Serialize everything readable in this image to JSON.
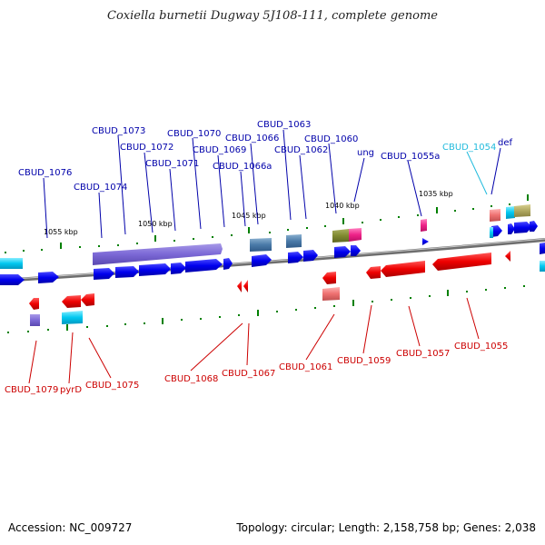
{
  "title": "Coxiella burnetii Dugway 5J108-111, complete genome",
  "footer": {
    "accession": "Accession: NC_009727",
    "topology": "Topology: circular; Length: 2,158,758 bp; Genes: 2,038"
  },
  "colors": {
    "backbone": "#8a8a8a",
    "forward": "#0000ee",
    "reverse": "#ee0000",
    "tick": "#008000",
    "label_forward": "#0000aa",
    "label_reverse": "#cc0000",
    "label_highlight": "#22bbdd"
  },
  "kbp_marks": [
    "1055 kbp",
    "1050 kbp",
    "1045 kbp",
    "1040 kbp",
    "1035 kbp"
  ],
  "gene_labels_top": [
    "CBUD_1076",
    "CBUD_1074",
    "CBUD_1073",
    "CBUD_1072",
    "CBUD_1071",
    "CBUD_1070",
    "CBUD_1069",
    "CBUD_1066",
    "CBUD_1066a",
    "CBUD_1063",
    "CBUD_1062",
    "CBUD_1060",
    "ung",
    "CBUD_1055a",
    "CBUD_1054",
    "def"
  ],
  "gene_labels_bottom": [
    "CBUD_1079",
    "pyrD",
    "CBUD_1075",
    "CBUD_1068",
    "CBUD_1067",
    "CBUD_1061",
    "CBUD_1059",
    "CBUD_1057",
    "CBUD_1055"
  ]
}
